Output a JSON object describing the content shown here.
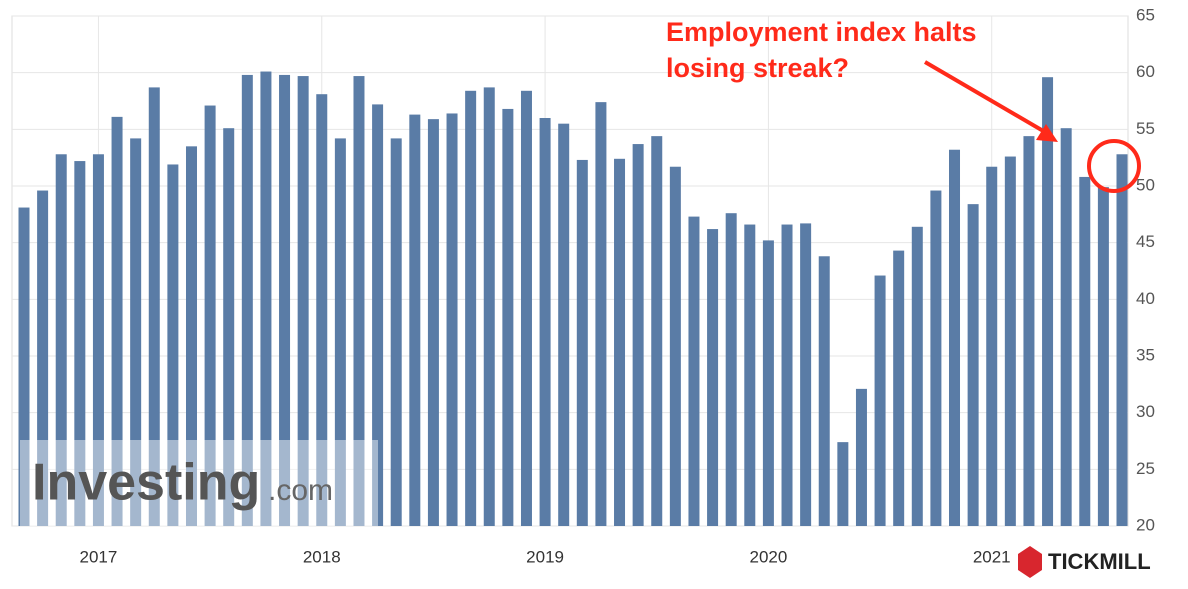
{
  "chart_data": {
    "type": "bar",
    "categories": [
      null,
      null,
      null,
      null,
      "2017",
      null,
      null,
      null,
      null,
      null,
      null,
      null,
      null,
      null,
      null,
      null,
      "2018",
      null,
      null,
      null,
      null,
      null,
      null,
      null,
      null,
      null,
      null,
      null,
      "2019",
      null,
      null,
      null,
      null,
      null,
      null,
      null,
      null,
      null,
      null,
      null,
      "2020",
      null,
      null,
      null,
      null,
      null,
      null,
      null,
      null,
      null,
      null,
      null,
      "2021",
      null,
      null,
      null,
      null,
      null,
      null,
      null
    ],
    "values": [
      48.1,
      49.6,
      52.8,
      52.2,
      52.8,
      56.1,
      54.2,
      58.7,
      51.9,
      53.5,
      57.1,
      55.1,
      59.8,
      60.1,
      59.8,
      59.7,
      58.1,
      54.2,
      59.7,
      57.2,
      54.2,
      56.3,
      55.9,
      56.4,
      58.4,
      58.7,
      56.8,
      58.4,
      56.0,
      55.5,
      52.3,
      57.4,
      52.4,
      53.7,
      54.4,
      51.7,
      47.3,
      46.2,
      47.6,
      46.6,
      45.2,
      46.6,
      46.7,
      43.8,
      27.4,
      32.1,
      42.1,
      44.3,
      46.4,
      49.6,
      53.2,
      48.4,
      51.7,
      52.6,
      54.4,
      59.6,
      55.1,
      50.8,
      49.9,
      52.8
    ],
    "color": "#5a7ca6",
    "ylim": [
      20,
      65
    ],
    "yticks": [
      20,
      25,
      30,
      35,
      40,
      45,
      50,
      55,
      60,
      65
    ],
    "grid": true,
    "annotation": [
      "Employment index halts",
      "losing streak?"
    ],
    "watermark": [
      "Investing",
      ".com"
    ],
    "logo": "TICKMILL"
  }
}
